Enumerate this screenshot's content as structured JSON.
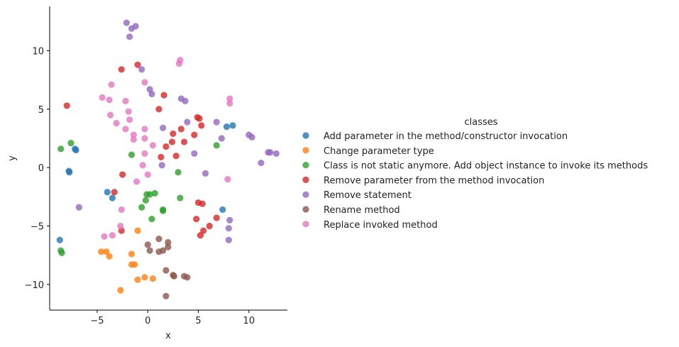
{
  "chart_data": {
    "type": "scatter",
    "xlabel": "x",
    "ylabel": "y",
    "xlim": [
      -9.7,
      13.8
    ],
    "ylim": [
      -12.2,
      13.8
    ],
    "xticks": [
      -5,
      0,
      5,
      10
    ],
    "yticks": [
      -10,
      -5,
      0,
      5,
      10
    ],
    "grid": false,
    "legend": {
      "title": "classes",
      "placement": "right"
    },
    "series": [
      {
        "name": "Add parameter in the method/constructor invocation",
        "color": "#1f77b4",
        "points": [
          [
            -8.7,
            -6.2
          ],
          [
            -7.2,
            1.6
          ],
          [
            -7.1,
            1.5
          ],
          [
            -7.8,
            -0.3
          ],
          [
            -7.75,
            -0.4
          ],
          [
            -4,
            -2.1
          ],
          [
            -3.5,
            -2.6
          ],
          [
            7.4,
            -3.6
          ],
          [
            7.8,
            3.5
          ],
          [
            8.4,
            3.6
          ]
        ]
      },
      {
        "name": "Change parameter type",
        "color": "#ff7f0e",
        "points": [
          [
            -4.6,
            -7.2
          ],
          [
            -4.1,
            -7.2
          ],
          [
            -3.8,
            -7.6
          ],
          [
            -2.7,
            -10.5
          ],
          [
            -1.6,
            -7.4
          ],
          [
            -1.6,
            -8.3
          ],
          [
            -1.3,
            -8.3
          ],
          [
            -1,
            -5.4
          ],
          [
            -1,
            -9.6
          ],
          [
            -0.3,
            -9.4
          ],
          [
            0.5,
            -9.5
          ]
        ]
      },
      {
        "name": "Class is not static anymore. Add object instance to invoke its methods",
        "color": "#2ca02c",
        "points": [
          [
            -8.6,
            1.6
          ],
          [
            -8.6,
            -7.1
          ],
          [
            -8.5,
            -7.3
          ],
          [
            -7.6,
            2.1
          ],
          [
            -1.6,
            1.1
          ],
          [
            -0.6,
            -3.4
          ],
          [
            -0.2,
            -2.8
          ],
          [
            -0.1,
            -2.3
          ],
          [
            0.2,
            -2.3
          ],
          [
            0.4,
            -4.4
          ],
          [
            0.7,
            -2.2
          ],
          [
            1.5,
            -3.6
          ],
          [
            1.5,
            -3.7
          ],
          [
            3,
            -0.4
          ],
          [
            3.2,
            -2.6
          ],
          [
            6.8,
            1.9
          ]
        ]
      },
      {
        "name": "Remove parameter from the method invocation",
        "color": "#d62728",
        "points": [
          [
            -8,
            5.3
          ],
          [
            -3.3,
            -2.1
          ],
          [
            -2.6,
            8.4
          ],
          [
            -2.5,
            -0.6
          ],
          [
            -2.6,
            -5.4
          ],
          [
            -1,
            8.8
          ],
          [
            1.1,
            5
          ],
          [
            1.3,
            0.9
          ],
          [
            1.6,
            6.2
          ],
          [
            1.8,
            1.8
          ],
          [
            2.4,
            2.2
          ],
          [
            2.5,
            2.9
          ],
          [
            2.8,
            1
          ],
          [
            3.3,
            3.3
          ],
          [
            3.6,
            2.2
          ],
          [
            4.6,
            2.8
          ],
          [
            4.8,
            -4.4
          ],
          [
            4.9,
            4.3
          ],
          [
            5,
            -3
          ],
          [
            5.2,
            -5.8
          ],
          [
            5.3,
            3.6
          ],
          [
            5.4,
            -3.1
          ],
          [
            5.5,
            -5.4
          ],
          [
            6.1,
            -5
          ],
          [
            6.8,
            -4.3
          ],
          [
            5.1,
            4.2
          ]
        ]
      },
      {
        "name": "Remove statement",
        "color": "#9467bd",
        "points": [
          [
            -6.8,
            -3.4
          ],
          [
            -2.1,
            12.4
          ],
          [
            -1.8,
            11.2
          ],
          [
            -1.6,
            11.9
          ],
          [
            -1.2,
            12.1
          ],
          [
            -0.6,
            8.4
          ],
          [
            0.2,
            6.7
          ],
          [
            0.4,
            6.3
          ],
          [
            1.4,
            0.2
          ],
          [
            1.5,
            3.4
          ],
          [
            3.3,
            5.9
          ],
          [
            3.7,
            5.7
          ],
          [
            3.9,
            3.9
          ],
          [
            4.6,
            1.2
          ],
          [
            5.7,
            -0.5
          ],
          [
            6.8,
            3.9
          ],
          [
            7.3,
            2.5
          ],
          [
            8.1,
            -4.5
          ],
          [
            8.0,
            -5.2
          ],
          [
            8.0,
            -6.2
          ],
          [
            10,
            2.8
          ],
          [
            10.3,
            2.6
          ],
          [
            11.2,
            0.4
          ],
          [
            11.9,
            1.3
          ],
          [
            12.1,
            1.3
          ],
          [
            12.7,
            1.2
          ]
        ]
      },
      {
        "name": "Rename method",
        "color": "#8c564b",
        "points": [
          [
            0,
            -6.6
          ],
          [
            0.2,
            -7.1
          ],
          [
            1.1,
            -6.1
          ],
          [
            1.1,
            -7.2
          ],
          [
            1.5,
            -7.1
          ],
          [
            1.8,
            -8.8
          ],
          [
            1.8,
            -11
          ],
          [
            2,
            -6.4
          ],
          [
            2,
            -6.8
          ],
          [
            2.5,
            -9.2
          ],
          [
            2.6,
            -9.3
          ],
          [
            3.6,
            -9.3
          ],
          [
            3.9,
            -9.4
          ]
        ]
      },
      {
        "name": "Replace invoked method",
        "color": "#e377c2",
        "points": [
          [
            -4.5,
            6.0
          ],
          [
            -4.3,
            -5.9
          ],
          [
            -3.8,
            5.8
          ],
          [
            -3.7,
            4.5
          ],
          [
            -3.6,
            7.1
          ],
          [
            -3.5,
            -5.8
          ],
          [
            -3.1,
            3.8
          ],
          [
            -2.7,
            -5
          ],
          [
            -2.6,
            -3.6
          ],
          [
            -2.2,
            5.7
          ],
          [
            -2.2,
            3.3
          ],
          [
            -1.9,
            4.8
          ],
          [
            -1.8,
            4.1
          ],
          [
            -1.4,
            2.8
          ],
          [
            -1.4,
            2.4
          ],
          [
            -1.1,
            -1.2
          ],
          [
            -0.5,
            0.2
          ],
          [
            -0.3,
            2.5
          ],
          [
            -0.3,
            3.3
          ],
          [
            -0.3,
            7.3
          ],
          [
            -0.3,
            1.2
          ],
          [
            0,
            -0.6
          ],
          [
            0.5,
            1.9
          ],
          [
            3.2,
            9.2
          ],
          [
            3.1,
            8.9
          ],
          [
            7.9,
            -1.0
          ],
          [
            8.1,
            5.9
          ],
          [
            8.1,
            5.5
          ]
        ]
      }
    ]
  }
}
